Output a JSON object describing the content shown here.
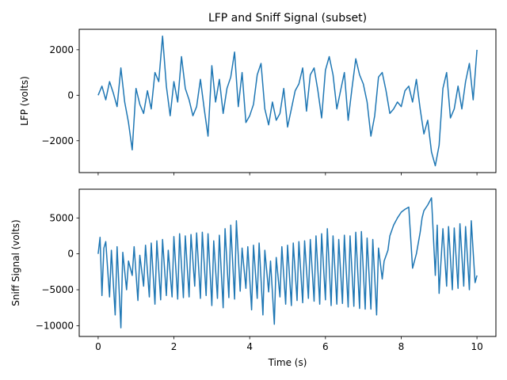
{
  "chart_data": [
    {
      "type": "line",
      "title": "LFP and Sniff Signal (subset)",
      "xlabel": "",
      "ylabel": "LFP (volts)",
      "xlim": [
        -0.5,
        10.5
      ],
      "ylim": [
        -3400,
        2900
      ],
      "xticks": [
        0,
        2,
        4,
        6,
        8,
        10
      ],
      "yticks": [
        -2000,
        0,
        2000
      ],
      "ytick_labels": [
        "−2000",
        "0",
        "2000"
      ],
      "grid": false,
      "color": "#1f77b4",
      "series": [
        {
          "name": "LFP",
          "x": [
            0,
            0.1,
            0.2,
            0.3,
            0.4,
            0.5,
            0.6,
            0.7,
            0.8,
            0.9,
            1.0,
            1.1,
            1.2,
            1.3,
            1.4,
            1.5,
            1.6,
            1.7,
            1.8,
            1.9,
            2.0,
            2.1,
            2.2,
            2.3,
            2.4,
            2.5,
            2.6,
            2.7,
            2.8,
            2.9,
            3.0,
            3.1,
            3.2,
            3.3,
            3.4,
            3.5,
            3.6,
            3.7,
            3.8,
            3.9,
            4.0,
            4.1,
            4.2,
            4.3,
            4.4,
            4.5,
            4.6,
            4.7,
            4.8,
            4.9,
            5.0,
            5.1,
            5.2,
            5.3,
            5.4,
            5.5,
            5.6,
            5.7,
            5.8,
            5.9,
            6.0,
            6.1,
            6.2,
            6.3,
            6.4,
            6.5,
            6.6,
            6.7,
            6.8,
            6.9,
            7.0,
            7.1,
            7.2,
            7.3,
            7.4,
            7.5,
            7.6,
            7.7,
            7.8,
            7.9,
            8.0,
            8.1,
            8.2,
            8.3,
            8.4,
            8.5,
            8.6,
            8.7,
            8.8,
            8.9,
            9.0,
            9.1,
            9.2,
            9.3,
            9.4,
            9.5,
            9.6,
            9.7,
            9.8,
            9.9,
            10.0
          ],
          "y": [
            0,
            400,
            -200,
            600,
            100,
            -500,
            1200,
            -300,
            -1200,
            -2400,
            300,
            -400,
            -800,
            200,
            -600,
            1000,
            600,
            2600,
            400,
            -900,
            600,
            -300,
            1700,
            300,
            -200,
            -900,
            -500,
            700,
            -600,
            -1800,
            1300,
            -300,
            700,
            -800,
            300,
            800,
            1900,
            -500,
            1000,
            -1200,
            -900,
            -400,
            900,
            1400,
            -600,
            -1300,
            -300,
            -1100,
            -800,
            300,
            -1400,
            -600,
            200,
            500,
            1200,
            -700,
            900,
            1200,
            200,
            -1000,
            1100,
            1700,
            900,
            -600,
            200,
            1000,
            -1100,
            300,
            1600,
            900,
            500,
            -300,
            -1800,
            -900,
            800,
            1000,
            200,
            -800,
            -600,
            -300,
            -500,
            200,
            400,
            -300,
            700,
            -600,
            -1700,
            -1100,
            -2500,
            -3100,
            -2200,
            300,
            1000,
            -1000,
            -600,
            400,
            -600,
            600,
            1400,
            -200,
            2000
          ]
        }
      ]
    },
    {
      "type": "line",
      "title": "",
      "xlabel": "Time (s)",
      "ylabel": "Sniff Signal (volts)",
      "xlim": [
        -0.5,
        10.5
      ],
      "ylim": [
        -11500,
        9000
      ],
      "xticks": [
        0,
        2,
        4,
        6,
        8,
        10
      ],
      "xtick_labels": [
        "0",
        "2",
        "4",
        "6",
        "8",
        "10"
      ],
      "yticks": [
        -10000,
        -5000,
        0,
        5000
      ],
      "ytick_labels": [
        "−10000",
        "−5000",
        "0",
        "5000"
      ],
      "grid": false,
      "color": "#1f77b4",
      "series": [
        {
          "name": "Sniff",
          "x": [
            0,
            0.05,
            0.1,
            0.15,
            0.2,
            0.3,
            0.35,
            0.45,
            0.5,
            0.6,
            0.65,
            0.75,
            0.8,
            0.9,
            0.95,
            1.05,
            1.1,
            1.2,
            1.25,
            1.35,
            1.4,
            1.5,
            1.55,
            1.65,
            1.7,
            1.8,
            1.85,
            1.95,
            2.0,
            2.1,
            2.15,
            2.25,
            2.3,
            2.4,
            2.45,
            2.55,
            2.6,
            2.7,
            2.75,
            2.85,
            2.9,
            3.0,
            3.05,
            3.15,
            3.2,
            3.3,
            3.35,
            3.45,
            3.5,
            3.6,
            3.65,
            3.75,
            3.8,
            3.9,
            3.95,
            4.05,
            4.1,
            4.2,
            4.25,
            4.35,
            4.4,
            4.5,
            4.55,
            4.65,
            4.7,
            4.8,
            4.85,
            4.95,
            5.0,
            5.1,
            5.15,
            5.25,
            5.3,
            5.4,
            5.45,
            5.55,
            5.6,
            5.7,
            5.75,
            5.85,
            5.9,
            6.0,
            6.05,
            6.15,
            6.2,
            6.3,
            6.35,
            6.45,
            6.5,
            6.6,
            6.65,
            6.75,
            6.8,
            6.9,
            6.95,
            7.05,
            7.1,
            7.2,
            7.25,
            7.35,
            7.4,
            7.5,
            7.55,
            7.65,
            7.7,
            7.8,
            7.9,
            8.0,
            8.1,
            8.2,
            8.3,
            8.4,
            8.5,
            8.55,
            8.6,
            8.7,
            8.8,
            8.9,
            8.95,
            9.0,
            9.1,
            9.2,
            9.25,
            9.35,
            9.4,
            9.5,
            9.55,
            9.65,
            9.7,
            9.8,
            9.85,
            9.95,
            10.0
          ],
          "y": [
            0,
            2300,
            -5800,
            800,
            1700,
            -6000,
            500,
            -8500,
            1000,
            -10300,
            200,
            -5000,
            -1000,
            -3000,
            1000,
            -6500,
            -200,
            -4500,
            1200,
            -6000,
            1500,
            -7000,
            1800,
            -6400,
            2000,
            -5800,
            500,
            -6000,
            2400,
            -6300,
            2800,
            -6100,
            2500,
            -6000,
            2700,
            -4500,
            2900,
            -6200,
            3000,
            -5800,
            2800,
            -7200,
            1800,
            -6200,
            2600,
            -7500,
            3500,
            -6100,
            4000,
            -6300,
            4600,
            -5200,
            800,
            -4800,
            1000,
            -7800,
            1200,
            -6200,
            1500,
            -8500,
            500,
            -5300,
            -1000,
            -9800,
            -500,
            -6000,
            1000,
            -7000,
            1200,
            -7200,
            1500,
            -6500,
            1700,
            -6800,
            1800,
            -6200,
            2000,
            -6600,
            2500,
            -7000,
            2800,
            -6400,
            3500,
            -7200,
            2500,
            -7000,
            2000,
            -6900,
            2600,
            -7400,
            2500,
            -7300,
            3000,
            -7600,
            3100,
            -7700,
            2200,
            -7700,
            2000,
            -8500,
            800,
            -3500,
            -1000,
            500,
            2500,
            4000,
            5000,
            5800,
            6200,
            6500,
            -2000,
            0,
            3000,
            5000,
            6000,
            6800,
            7800,
            -3000,
            4000,
            -5500,
            3500,
            -4500,
            3800,
            -5000,
            3600,
            -4800,
            4200,
            -4500,
            3800,
            -5000,
            4600,
            -4000,
            -3000
          ]
        }
      ]
    }
  ]
}
